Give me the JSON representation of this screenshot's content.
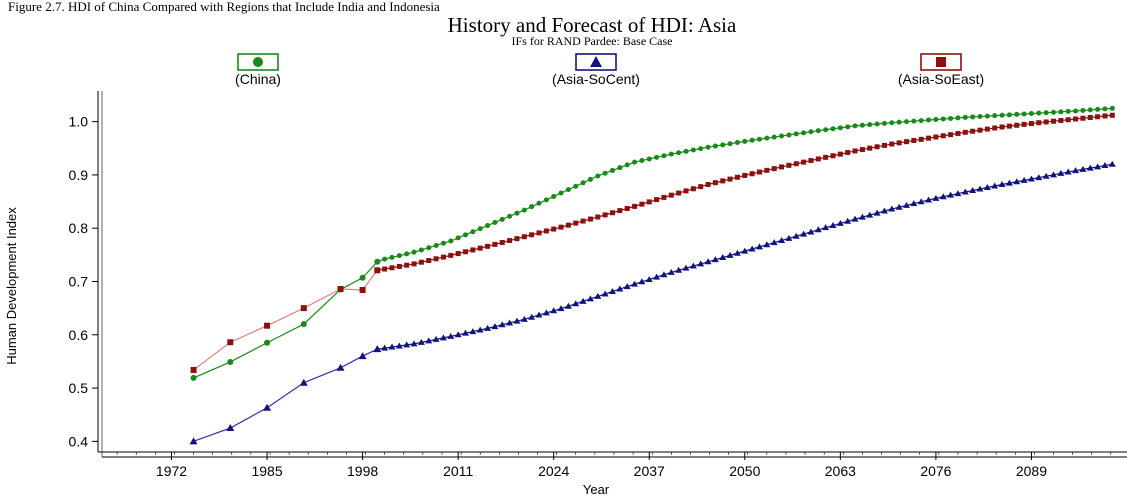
{
  "header": {
    "caption": "Figure 2.7. HDI of China Compared with Regions that Include India and Indonesia"
  },
  "chart_data": {
    "type": "line",
    "title": "History and Forecast of HDI: Asia",
    "subtitle": "IFs for RAND Pardee:  Base Case",
    "xlabel": "Year",
    "ylabel": "Human Development Index",
    "xlim": [
      1962,
      2102
    ],
    "ylim": [
      0.38,
      1.05
    ],
    "x_ticks": [
      1972,
      1985,
      1998,
      2011,
      2024,
      2037,
      2050,
      2063,
      2076,
      2089
    ],
    "y_ticks": [
      0.4,
      0.5,
      0.6,
      0.7,
      0.8,
      0.9,
      1.0
    ],
    "y_tick_labels": [
      "0.4",
      "0.5",
      "0.6",
      "0.7",
      "0.8",
      "0.9",
      "1.0"
    ],
    "legend_position": "top",
    "series": [
      {
        "name": "(China)",
        "color": "#178a17",
        "line_color": "#178a17",
        "marker": "circle",
        "history": [
          [
            1975,
            0.519
          ],
          [
            1980,
            0.549
          ],
          [
            1985,
            0.585
          ],
          [
            1990,
            0.62
          ],
          [
            1995,
            0.685
          ],
          [
            1998,
            0.707
          ],
          [
            2000,
            0.737
          ]
        ],
        "forecast_keys": [
          [
            2000,
            0.737
          ],
          [
            2001,
            0.742
          ],
          [
            2005,
            0.755
          ],
          [
            2010,
            0.776
          ],
          [
            2015,
            0.805
          ],
          [
            2020,
            0.834
          ],
          [
            2025,
            0.866
          ],
          [
            2030,
            0.898
          ],
          [
            2035,
            0.924
          ],
          [
            2040,
            0.939
          ],
          [
            2045,
            0.952
          ],
          [
            2050,
            0.963
          ],
          [
            2055,
            0.973
          ],
          [
            2060,
            0.983
          ],
          [
            2065,
            0.992
          ],
          [
            2070,
            0.998
          ],
          [
            2075,
            1.003
          ],
          [
            2080,
            1.008
          ],
          [
            2085,
            1.012
          ],
          [
            2090,
            1.016
          ],
          [
            2095,
            1.02
          ],
          [
            2100,
            1.025
          ]
        ]
      },
      {
        "name": "(Asia-SoCent)",
        "color": "#131380",
        "line_color": "#3333aa",
        "marker": "triangle",
        "history": [
          [
            1975,
            0.4
          ],
          [
            1980,
            0.425
          ],
          [
            1985,
            0.463
          ],
          [
            1990,
            0.51
          ],
          [
            1995,
            0.538
          ],
          [
            1998,
            0.56
          ],
          [
            2000,
            0.573
          ]
        ],
        "forecast_keys": [
          [
            2000,
            0.573
          ],
          [
            2005,
            0.583
          ],
          [
            2010,
            0.597
          ],
          [
            2015,
            0.612
          ],
          [
            2020,
            0.629
          ],
          [
            2025,
            0.649
          ],
          [
            2030,
            0.672
          ],
          [
            2035,
            0.695
          ],
          [
            2040,
            0.717
          ],
          [
            2045,
            0.737
          ],
          [
            2050,
            0.757
          ],
          [
            2055,
            0.777
          ],
          [
            2060,
            0.797
          ],
          [
            2065,
            0.817
          ],
          [
            2070,
            0.836
          ],
          [
            2075,
            0.853
          ],
          [
            2080,
            0.868
          ],
          [
            2085,
            0.882
          ],
          [
            2090,
            0.895
          ],
          [
            2095,
            0.908
          ],
          [
            2100,
            0.92
          ]
        ]
      },
      {
        "name": "(Asia-SoEast)",
        "color": "#8b1010",
        "line_color": "#e08080",
        "marker": "square",
        "history": [
          [
            1975,
            0.534
          ],
          [
            1980,
            0.586
          ],
          [
            1985,
            0.617
          ],
          [
            1990,
            0.65
          ],
          [
            1995,
            0.686
          ],
          [
            1998,
            0.684
          ],
          [
            2000,
            0.721
          ]
        ],
        "forecast_keys": [
          [
            2000,
            0.721
          ],
          [
            2005,
            0.733
          ],
          [
            2010,
            0.749
          ],
          [
            2015,
            0.766
          ],
          [
            2020,
            0.784
          ],
          [
            2025,
            0.802
          ],
          [
            2030,
            0.821
          ],
          [
            2035,
            0.841
          ],
          [
            2040,
            0.862
          ],
          [
            2045,
            0.882
          ],
          [
            2050,
            0.899
          ],
          [
            2055,
            0.915
          ],
          [
            2060,
            0.93
          ],
          [
            2065,
            0.945
          ],
          [
            2070,
            0.958
          ],
          [
            2075,
            0.969
          ],
          [
            2080,
            0.98
          ],
          [
            2085,
            0.99
          ],
          [
            2090,
            0.998
          ],
          [
            2095,
            1.005
          ],
          [
            2100,
            1.012
          ]
        ]
      }
    ]
  }
}
